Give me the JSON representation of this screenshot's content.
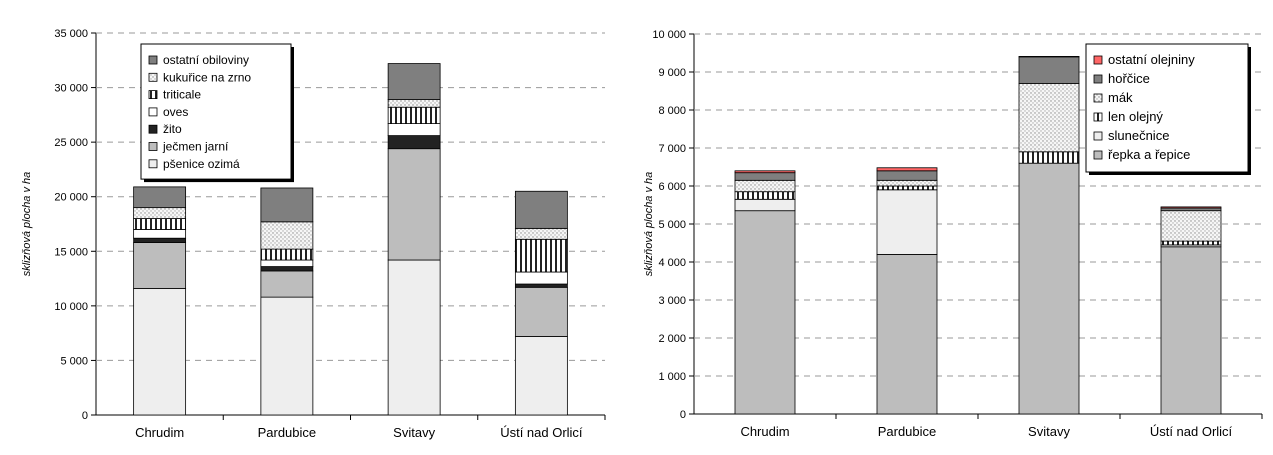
{
  "chart_data": [
    {
      "type": "bar",
      "stacked": true,
      "title": "",
      "ylabel": "sklizňová plocha v ha",
      "xlabel": "",
      "ylim": [
        0,
        35000
      ],
      "yticks": [
        0,
        5000,
        10000,
        15000,
        20000,
        25000,
        30000,
        35000
      ],
      "ytick_labels": [
        "0",
        "5 000",
        "10 000",
        "15 000",
        "20 000",
        "25 000",
        "30 000",
        "35 000"
      ],
      "grid": true,
      "legend_position": "top-left",
      "categories": [
        "Chrudim",
        "Pardubice",
        "Svitavy",
        "Ústí nad Orlicí"
      ],
      "series": [
        {
          "name": "pšenice ozimá",
          "values": [
            11600,
            10800,
            14200,
            7200
          ],
          "fill": "#eeeeee",
          "pattern": "none"
        },
        {
          "name": "ječmen jarní",
          "values": [
            4200,
            2400,
            10200,
            4500
          ],
          "fill": "#bdbdbd",
          "pattern": "none"
        },
        {
          "name": "žito",
          "values": [
            400,
            400,
            1200,
            300
          ],
          "fill": "#222222",
          "pattern": "none"
        },
        {
          "name": "oves",
          "values": [
            800,
            600,
            1100,
            1100
          ],
          "fill": "#ffffff",
          "pattern": "none"
        },
        {
          "name": "triticale",
          "values": [
            1000,
            1000,
            1500,
            3000
          ],
          "fill": "#ffffff",
          "pattern": "vlines"
        },
        {
          "name": "kukuřice na zrno",
          "values": [
            1000,
            2500,
            700,
            1000
          ],
          "fill": "#f4f4f4",
          "pattern": "dots"
        },
        {
          "name": "ostatní obiloviny",
          "values": [
            1900,
            3100,
            3300,
            3400
          ],
          "fill": "#7f7f7f",
          "pattern": "none"
        }
      ]
    },
    {
      "type": "bar",
      "stacked": true,
      "title": "",
      "ylabel": "sklizňová plocha v ha",
      "xlabel": "",
      "ylim": [
        0,
        10000
      ],
      "yticks": [
        0,
        1000,
        2000,
        3000,
        4000,
        5000,
        6000,
        7000,
        8000,
        9000,
        10000
      ],
      "ytick_labels": [
        "0",
        "1 000",
        "2 000",
        "3 000",
        "4 000",
        "5 000",
        "6 000",
        "7 000",
        "8 000",
        "9 000",
        "10 000"
      ],
      "grid": true,
      "legend_position": "top-right",
      "categories": [
        "Chrudim",
        "Pardubice",
        "Svitavy",
        "Ústí nad Orlicí"
      ],
      "series": [
        {
          "name": "řepka a řepice",
          "values": [
            5350,
            4200,
            6600,
            4400
          ],
          "fill": "#bdbdbd",
          "pattern": "none"
        },
        {
          "name": "slunečnice",
          "values": [
            300,
            1700,
            0,
            50
          ],
          "fill": "#eeeeee",
          "pattern": "none"
        },
        {
          "name": "len olejný",
          "values": [
            200,
            100,
            300,
            100
          ],
          "fill": "#ffffff",
          "pattern": "vlines"
        },
        {
          "name": "mák",
          "values": [
            300,
            150,
            1800,
            800
          ],
          "fill": "#f4f4f4",
          "pattern": "dots"
        },
        {
          "name": "hořčice",
          "values": [
            200,
            250,
            700,
            70
          ],
          "fill": "#7f7f7f",
          "pattern": "none"
        },
        {
          "name": "ostatní olejniny",
          "values": [
            50,
            80,
            10,
            30
          ],
          "fill": "#ff6666",
          "pattern": "none"
        }
      ]
    }
  ]
}
